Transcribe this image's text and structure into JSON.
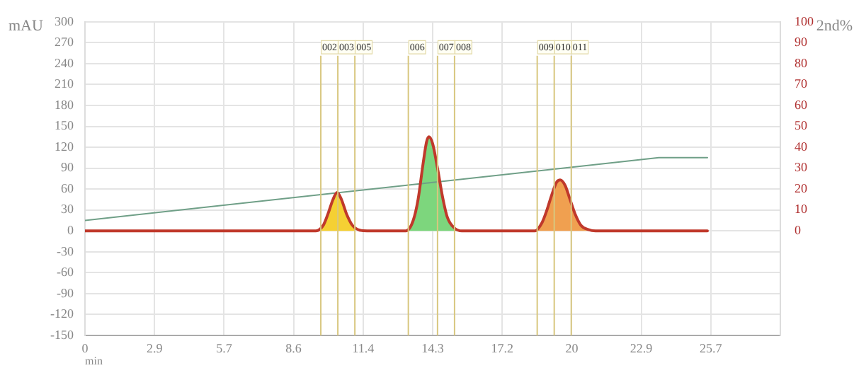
{
  "chart_data": {
    "type": "line",
    "xlabel": "min",
    "ylabel": "mAU",
    "y2label": "2nd%",
    "grid": true,
    "legend": false,
    "marker": "none",
    "line_style": "solid",
    "xlim": [
      0,
      28.6
    ],
    "xticks": [
      0,
      {
        "value": 2.86,
        "label": "2.9"
      },
      {
        "value": 5.72,
        "label": "5.7"
      },
      {
        "value": 8.58,
        "label": "8.6"
      },
      {
        "value": 11.44,
        "label": "11.4"
      },
      {
        "value": 14.3,
        "label": "14.3"
      },
      {
        "value": 17.16,
        "label": "17.2"
      },
      {
        "value": 20.02,
        "label": "20"
      },
      {
        "value": 22.88,
        "label": "22.9"
      },
      {
        "value": 25.74,
        "label": "25.7"
      }
    ],
    "ylim": [
      -150,
      300
    ],
    "yticks": [
      -150,
      -120,
      -90,
      -60,
      -30,
      0,
      30,
      60,
      90,
      120,
      150,
      180,
      210,
      240,
      270,
      300
    ],
    "y2lim": [
      -50,
      100
    ],
    "y2ticks": [
      0,
      10,
      20,
      30,
      40,
      50,
      60,
      70,
      80,
      90,
      100
    ],
    "series": [
      {
        "type": "line",
        "color": "#c0392b",
        "x": [
          0,
          9.5,
          9.8,
          10.0,
          10.2,
          10.37,
          10.55,
          10.75,
          11.0,
          11.3,
          11.6,
          13.2,
          13.5,
          13.7,
          13.9,
          14.05,
          14.15,
          14.3,
          14.5,
          14.7,
          14.9,
          15.2,
          15.5,
          18.5,
          18.8,
          19.0,
          19.2,
          19.4,
          19.55,
          19.75,
          19.95,
          20.15,
          20.4,
          20.7,
          21.0,
          25.6
        ],
        "values": [
          0,
          0,
          8,
          25,
          45,
          55,
          45,
          25,
          8,
          1,
          0,
          0,
          15,
          45,
          95,
          128,
          135,
          125,
          90,
          50,
          20,
          4,
          0,
          0,
          12,
          30,
          52,
          70,
          73,
          65,
          45,
          25,
          8,
          2,
          0,
          0
        ]
      },
      {
        "type": "line",
        "axis": "y2",
        "color": "#6f9f87",
        "x": [
          0,
          23.6,
          25.6
        ],
        "values": [
          5,
          35,
          35
        ]
      },
      {
        "type": "area",
        "color": "#f5d033",
        "x": [
          9.5,
          9.8,
          10.0,
          10.2,
          10.37,
          10.55,
          10.75,
          11.0,
          11.1
        ],
        "values": [
          0,
          8,
          25,
          45,
          55,
          45,
          25,
          8,
          5
        ]
      },
      {
        "type": "area",
        "color": "#7dd67d",
        "x": [
          13.2,
          13.5,
          13.7,
          13.9,
          14.05,
          14.15,
          14.3,
          14.5,
          14.7,
          14.9,
          15.2,
          15.5
        ],
        "values": [
          0,
          15,
          45,
          95,
          128,
          135,
          125,
          90,
          50,
          20,
          4,
          0
        ]
      },
      {
        "type": "area",
        "color": "#f0a050",
        "x": [
          18.5,
          18.8,
          19.0,
          19.2,
          19.4,
          19.55,
          19.75,
          19.95,
          20.15,
          20.4,
          20.7
        ],
        "values": [
          0,
          12,
          30,
          52,
          70,
          73,
          65,
          45,
          25,
          8,
          2
        ]
      }
    ],
    "ref_lines": [
      {
        "axis": "x",
        "value": 9.7,
        "color": "#d8c77f"
      },
      {
        "axis": "x",
        "value": 10.4,
        "color": "#d8c77f"
      },
      {
        "axis": "x",
        "value": 11.1,
        "color": "#d8c77f"
      },
      {
        "axis": "x",
        "value": 13.3,
        "color": "#d8c77f"
      },
      {
        "axis": "x",
        "value": 14.5,
        "color": "#d8c77f"
      },
      {
        "axis": "x",
        "value": 15.2,
        "color": "#d8c77f"
      },
      {
        "axis": "x",
        "value": 18.6,
        "color": "#d8c77f"
      },
      {
        "axis": "x",
        "value": 19.3,
        "color": "#d8c77f"
      },
      {
        "axis": "x",
        "value": 20.0,
        "color": "#d8c77f"
      }
    ],
    "annotations": [
      "002",
      "003",
      "005",
      "006",
      "007",
      "008",
      "009",
      "010",
      "011"
    ]
  }
}
